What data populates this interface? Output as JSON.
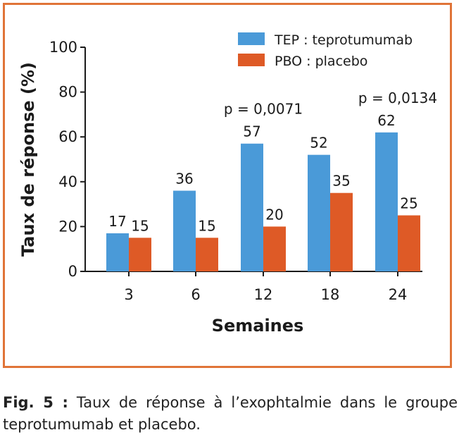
{
  "chart_data": {
    "type": "bar",
    "title": "",
    "xlabel": "Semaines",
    "ylabel": "Taux de réponse (%)",
    "ylim": [
      0,
      100
    ],
    "yticks": [
      "0",
      "20",
      "40",
      "60",
      "80",
      "100"
    ],
    "categories": [
      "3",
      "6",
      "12",
      "18",
      "24"
    ],
    "series": [
      {
        "name": "TEP : teprotumumab",
        "color": "#4a9ad8",
        "values": [
          17,
          36,
          57,
          52,
          62
        ]
      },
      {
        "name": "PBO : placebo",
        "color": "#de5a26",
        "values": [
          15,
          15,
          20,
          35,
          25
        ]
      }
    ],
    "annotations": [
      {
        "category": "12",
        "text": "p = 0,0071"
      },
      {
        "category": "24",
        "text": "p = 0,0134"
      }
    ],
    "legend_position": "top-right",
    "grid": false
  },
  "caption": {
    "label": "Fig. 5 :",
    "text": "Taux de réponse à l’exophtalmie dans le groupe teprotumumab et placebo."
  },
  "colors": {
    "frame": "#e07438"
  }
}
